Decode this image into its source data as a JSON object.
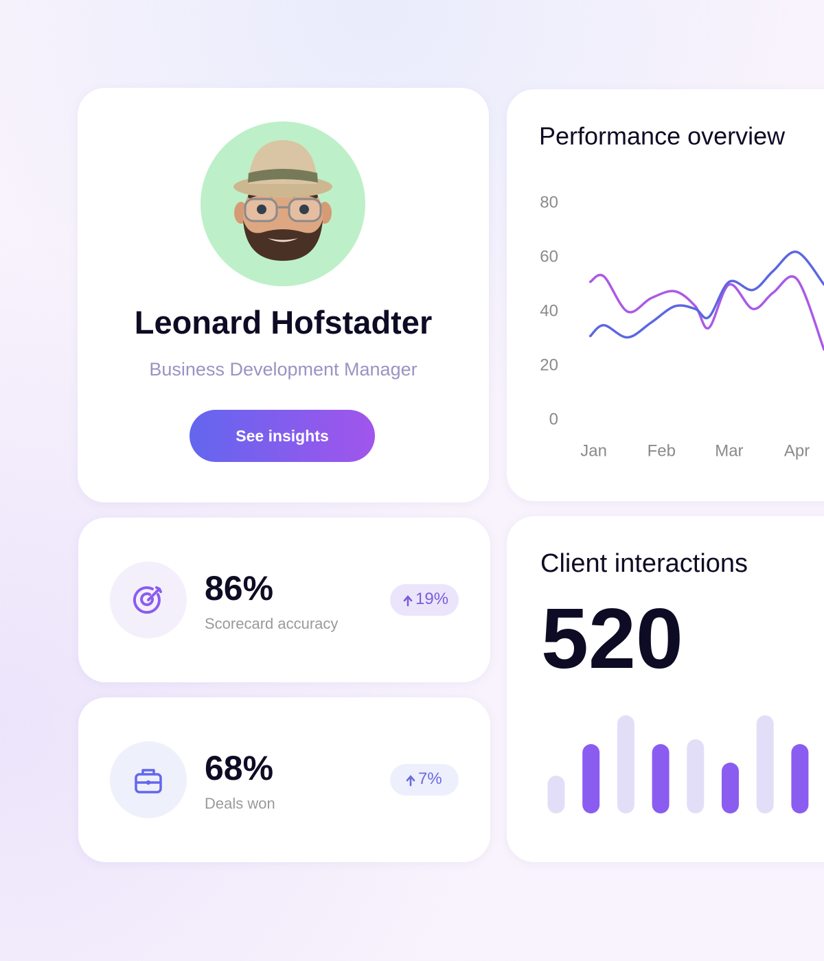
{
  "profile": {
    "name": "Leonard Hofstadter",
    "role": "Business Development Manager",
    "button": "See insights"
  },
  "stats": [
    {
      "value": "86%",
      "label": "Scorecard accuracy",
      "change": "19%"
    },
    {
      "value": "68%",
      "label": "Deals won",
      "change": "7%"
    }
  ],
  "chart_data": [
    {
      "type": "line",
      "title": "Performance overview",
      "x": [
        -0.05,
        0.15,
        0.5,
        0.85,
        1.2,
        1.5,
        1.7,
        2.0,
        2.35,
        2.65,
        3.0,
        3.4
      ],
      "xlim": [
        -0.3,
        3.4
      ],
      "xticks": [
        {
          "value": 0,
          "label": "Jan"
        },
        {
          "value": 1,
          "label": "Feb"
        },
        {
          "value": 2,
          "label": "Mar"
        },
        {
          "value": 3,
          "label": "Apr"
        }
      ],
      "ylim": [
        0,
        80
      ],
      "yticks": [
        0,
        20,
        40,
        60,
        80
      ],
      "series": [
        {
          "color": "#a95ae6",
          "values": [
            51,
            53,
            40,
            45,
            47.5,
            42,
            34,
            50,
            41,
            47,
            52,
            26
          ]
        },
        {
          "color": "#5b67e0",
          "values": [
            31,
            35,
            30.5,
            36,
            42,
            41,
            38,
            51,
            48,
            55,
            62,
            50
          ]
        }
      ]
    },
    {
      "type": "bar",
      "title": "Client interactions",
      "headline": 520,
      "values": [
        55,
        101,
        143,
        101,
        108,
        74,
        143,
        101
      ],
      "colors": [
        "#e3def8",
        "#8b5cf0",
        "#e3def8",
        "#8b5cf0",
        "#e3def8",
        "#8b5cf0",
        "#e3def8",
        "#8b5cf0"
      ]
    }
  ]
}
